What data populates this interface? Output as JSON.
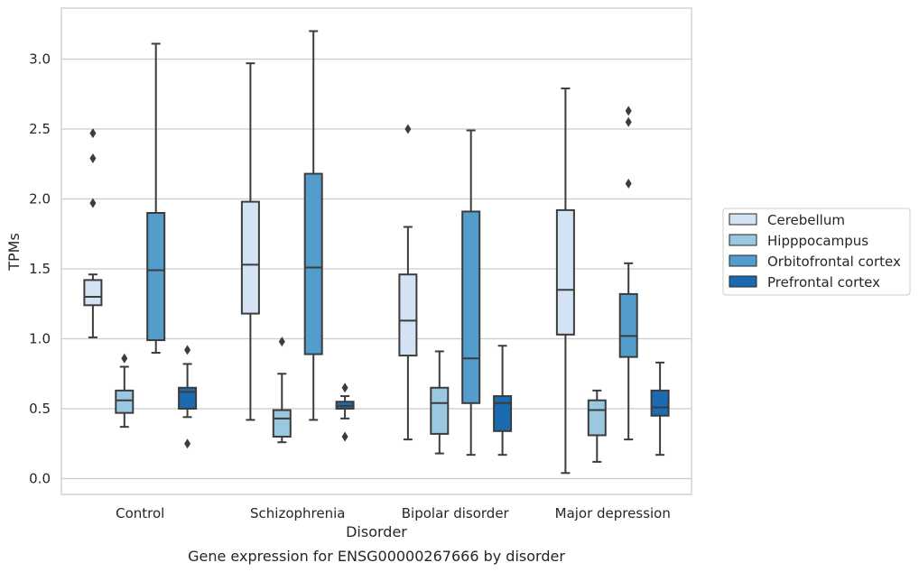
{
  "caption": "Gene expression for ENSG00000267666 by disorder",
  "chart_data": {
    "type": "box",
    "xlabel": "Disorder",
    "ylabel": "TPMs",
    "ylim": [
      -0.11,
      3.35
    ],
    "yticks": [
      "0.0",
      "0.5",
      "1.0",
      "1.5",
      "2.0",
      "2.5",
      "3.0"
    ],
    "ytick_values": [
      0,
      0.5,
      1.0,
      1.5,
      2.0,
      2.5,
      3.0
    ],
    "grid": "horizontal",
    "legend_position": "right",
    "categories": [
      "Control",
      "Schizophrenia",
      "Bipolar disorder",
      "Major depression"
    ],
    "series": [
      {
        "name": "Cerebellum",
        "color": "#d3e3f3",
        "boxes": [
          {
            "whislo": 1.01,
            "q1": 1.24,
            "med": 1.3,
            "q3": 1.42,
            "whishi": 1.46,
            "fliers": [
              1.97,
              2.29,
              2.47
            ]
          },
          {
            "whislo": 0.42,
            "q1": 1.18,
            "med": 1.53,
            "q3": 1.98,
            "whishi": 2.97,
            "fliers": []
          },
          {
            "whislo": 0.28,
            "q1": 0.88,
            "med": 1.13,
            "q3": 1.46,
            "whishi": 1.8,
            "fliers": [
              2.5
            ]
          },
          {
            "whislo": 0.04,
            "q1": 1.03,
            "med": 1.35,
            "q3": 1.92,
            "whishi": 2.79,
            "fliers": []
          }
        ]
      },
      {
        "name": "Hipppocampus",
        "color": "#9ac8e0",
        "boxes": [
          {
            "whislo": 0.37,
            "q1": 0.47,
            "med": 0.56,
            "q3": 0.63,
            "whishi": 0.8,
            "fliers": [
              0.86
            ]
          },
          {
            "whislo": 0.26,
            "q1": 0.3,
            "med": 0.43,
            "q3": 0.49,
            "whishi": 0.75,
            "fliers": [
              0.98
            ]
          },
          {
            "whislo": 0.18,
            "q1": 0.32,
            "med": 0.54,
            "q3": 0.65,
            "whishi": 0.91,
            "fliers": []
          },
          {
            "whislo": 0.12,
            "q1": 0.31,
            "med": 0.49,
            "q3": 0.56,
            "whishi": 0.63,
            "fliers": []
          }
        ]
      },
      {
        "name": "Orbitofrontal cortex",
        "color": "#529dcc",
        "boxes": [
          {
            "whislo": 0.9,
            "q1": 0.99,
            "med": 1.49,
            "q3": 1.9,
            "whishi": 3.11,
            "fliers": []
          },
          {
            "whislo": 0.42,
            "q1": 0.89,
            "med": 1.51,
            "q3": 2.18,
            "whishi": 3.2,
            "fliers": []
          },
          {
            "whislo": 0.17,
            "q1": 0.54,
            "med": 0.86,
            "q3": 1.91,
            "whishi": 2.49,
            "fliers": []
          },
          {
            "whislo": 0.28,
            "q1": 0.87,
            "med": 1.02,
            "q3": 1.32,
            "whishi": 1.54,
            "fliers": [
              2.11,
              2.55,
              2.63
            ]
          }
        ]
      },
      {
        "name": "Prefrontal cortex",
        "color": "#1c6aaf",
        "boxes": [
          {
            "whislo": 0.44,
            "q1": 0.5,
            "med": 0.62,
            "q3": 0.65,
            "whishi": 0.82,
            "fliers": [
              0.25,
              0.92
            ]
          },
          {
            "whislo": 0.43,
            "q1": 0.5,
            "med": 0.52,
            "q3": 0.55,
            "whishi": 0.59,
            "fliers": [
              0.3,
              0.65
            ]
          },
          {
            "whislo": 0.17,
            "q1": 0.34,
            "med": 0.54,
            "q3": 0.59,
            "whishi": 0.95,
            "fliers": []
          },
          {
            "whislo": 0.17,
            "q1": 0.45,
            "med": 0.51,
            "q3": 0.63,
            "whishi": 0.83,
            "fliers": []
          }
        ]
      }
    ]
  }
}
